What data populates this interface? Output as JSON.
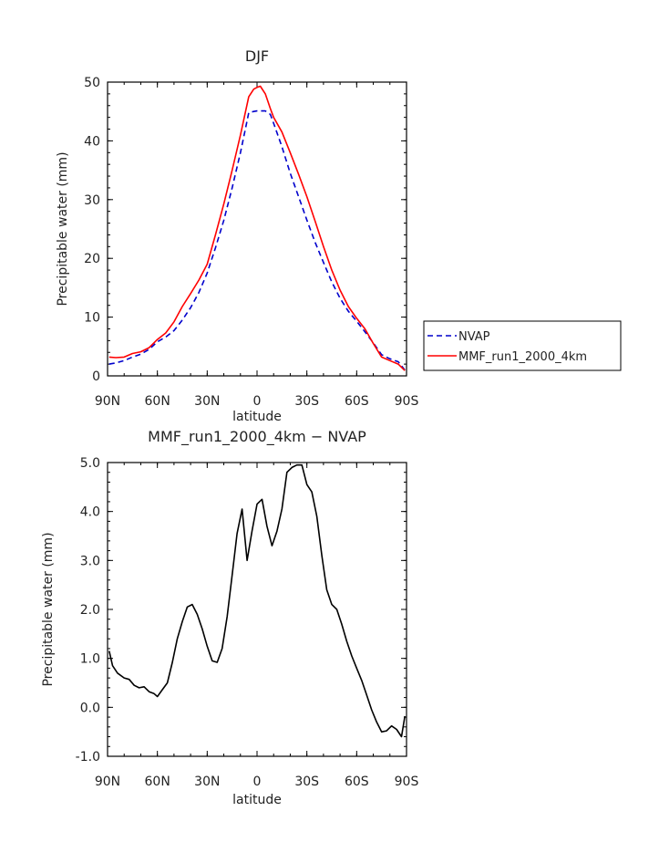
{
  "chart_data": [
    {
      "type": "line",
      "title": "DJF",
      "xlabel": "latitude",
      "ylabel": "Precipitable water (mm)",
      "xlim": [
        90,
        -90
      ],
      "ylim": [
        0,
        50
      ],
      "x_ticks": [
        90,
        60,
        30,
        0,
        -30,
        -60,
        -90
      ],
      "x_tick_labels": [
        "90N",
        "60N",
        "30N",
        "0",
        "30S",
        "60S",
        "90S"
      ],
      "y_ticks": [
        0,
        10,
        20,
        30,
        40,
        50
      ],
      "y_tick_labels": [
        "0",
        "10",
        "20",
        "30",
        "40",
        "50"
      ],
      "legend_position": "right",
      "series": [
        {
          "name": "NVAP",
          "color": "#0000cc",
          "style": "dashed",
          "x": [
            89,
            85,
            80,
            75,
            70,
            65,
            60,
            55,
            50,
            45,
            40,
            35,
            30,
            25,
            20,
            15,
            10,
            7,
            5,
            2,
            0,
            -2,
            -5,
            -8,
            -10,
            -15,
            -20,
            -25,
            -30,
            -35,
            -40,
            -45,
            -50,
            -55,
            -60,
            -65,
            -70,
            -75,
            -80,
            -85,
            -89
          ],
          "y": [
            2.0,
            2.2,
            2.6,
            3.2,
            3.7,
            4.5,
            5.8,
            6.6,
            7.7,
            9.5,
            11.6,
            14.2,
            17.5,
            21.8,
            26.5,
            32.0,
            38.0,
            42.0,
            44.8,
            45.0,
            45.1,
            45.1,
            45.1,
            44.5,
            43.0,
            39.0,
            34.5,
            30.5,
            26.5,
            22.7,
            19.3,
            16.0,
            13.2,
            11.0,
            9.3,
            7.5,
            5.6,
            3.6,
            2.9,
            2.4,
            1.0
          ]
        },
        {
          "name": "MMF_run1_2000_4km",
          "color": "#ff0000",
          "style": "solid",
          "x": [
            89,
            85,
            80,
            75,
            70,
            65,
            60,
            55,
            50,
            45,
            40,
            35,
            30,
            25,
            20,
            15,
            10,
            5,
            2,
            0,
            -2,
            -5,
            -8,
            -10,
            -15,
            -20,
            -25,
            -30,
            -35,
            -40,
            -45,
            -50,
            -55,
            -60,
            -65,
            -70,
            -75,
            -80,
            -85,
            -89
          ],
          "y": [
            3.2,
            3.1,
            3.2,
            3.8,
            4.1,
            4.8,
            6.2,
            7.3,
            9.2,
            11.8,
            14.0,
            16.3,
            19.0,
            24.0,
            29.3,
            35.0,
            41.0,
            47.5,
            48.8,
            49.1,
            49.3,
            48.0,
            45.5,
            44.0,
            41.5,
            38.0,
            34.3,
            30.5,
            26.3,
            22.0,
            18.0,
            14.6,
            11.8,
            9.8,
            8.0,
            5.5,
            3.2,
            2.6,
            2.0,
            0.9
          ]
        }
      ]
    },
    {
      "type": "line",
      "title": "MMF_run1_2000_4km − NVAP",
      "xlabel": "latitude",
      "ylabel": "Precipitable water (mm)",
      "xlim": [
        90,
        -90
      ],
      "ylim": [
        -1.0,
        5.0
      ],
      "x_ticks": [
        90,
        60,
        30,
        0,
        -30,
        -60,
        -90
      ],
      "x_tick_labels": [
        "90N",
        "60N",
        "30N",
        "0",
        "30S",
        "60S",
        "90S"
      ],
      "y_ticks": [
        -1.0,
        0.0,
        1.0,
        2.0,
        3.0,
        4.0,
        5.0
      ],
      "y_tick_labels": [
        "-1.0",
        "0.0",
        "1.0",
        "2.0",
        "3.0",
        "4.0",
        "5.0"
      ],
      "series": [
        {
          "name": "MMF_run1_2000_4km - NVAP",
          "color": "#000000",
          "style": "solid",
          "x": [
            89,
            87,
            84,
            80,
            77,
            74,
            71,
            68,
            65,
            62,
            60,
            57,
            54,
            51,
            48,
            45,
            42,
            39,
            36,
            33,
            30,
            27,
            24,
            21,
            18,
            15,
            12,
            9,
            6,
            3,
            0,
            -3,
            -6,
            -9,
            -12,
            -15,
            -18,
            -21,
            -24,
            -27,
            -30,
            -33,
            -36,
            -39,
            -42,
            -45,
            -48,
            -51,
            -54,
            -57,
            -60,
            -63,
            -66,
            -69,
            -72,
            -75,
            -78,
            -81,
            -84,
            -87,
            -89
          ],
          "y": [
            1.15,
            0.85,
            0.7,
            0.6,
            0.57,
            0.45,
            0.4,
            0.42,
            0.32,
            0.28,
            0.22,
            0.36,
            0.5,
            0.92,
            1.4,
            1.75,
            2.05,
            2.1,
            1.9,
            1.6,
            1.25,
            0.95,
            0.92,
            1.2,
            1.85,
            2.7,
            3.55,
            4.05,
            3.0,
            3.6,
            4.15,
            4.25,
            3.7,
            3.3,
            3.6,
            4.05,
            4.8,
            4.9,
            4.95,
            4.95,
            4.55,
            4.4,
            3.9,
            3.1,
            2.4,
            2.1,
            2.0,
            1.7,
            1.35,
            1.05,
            0.8,
            0.55,
            0.25,
            -0.05,
            -0.3,
            -0.5,
            -0.48,
            -0.38,
            -0.45,
            -0.6,
            -0.18
          ]
        }
      ]
    }
  ]
}
